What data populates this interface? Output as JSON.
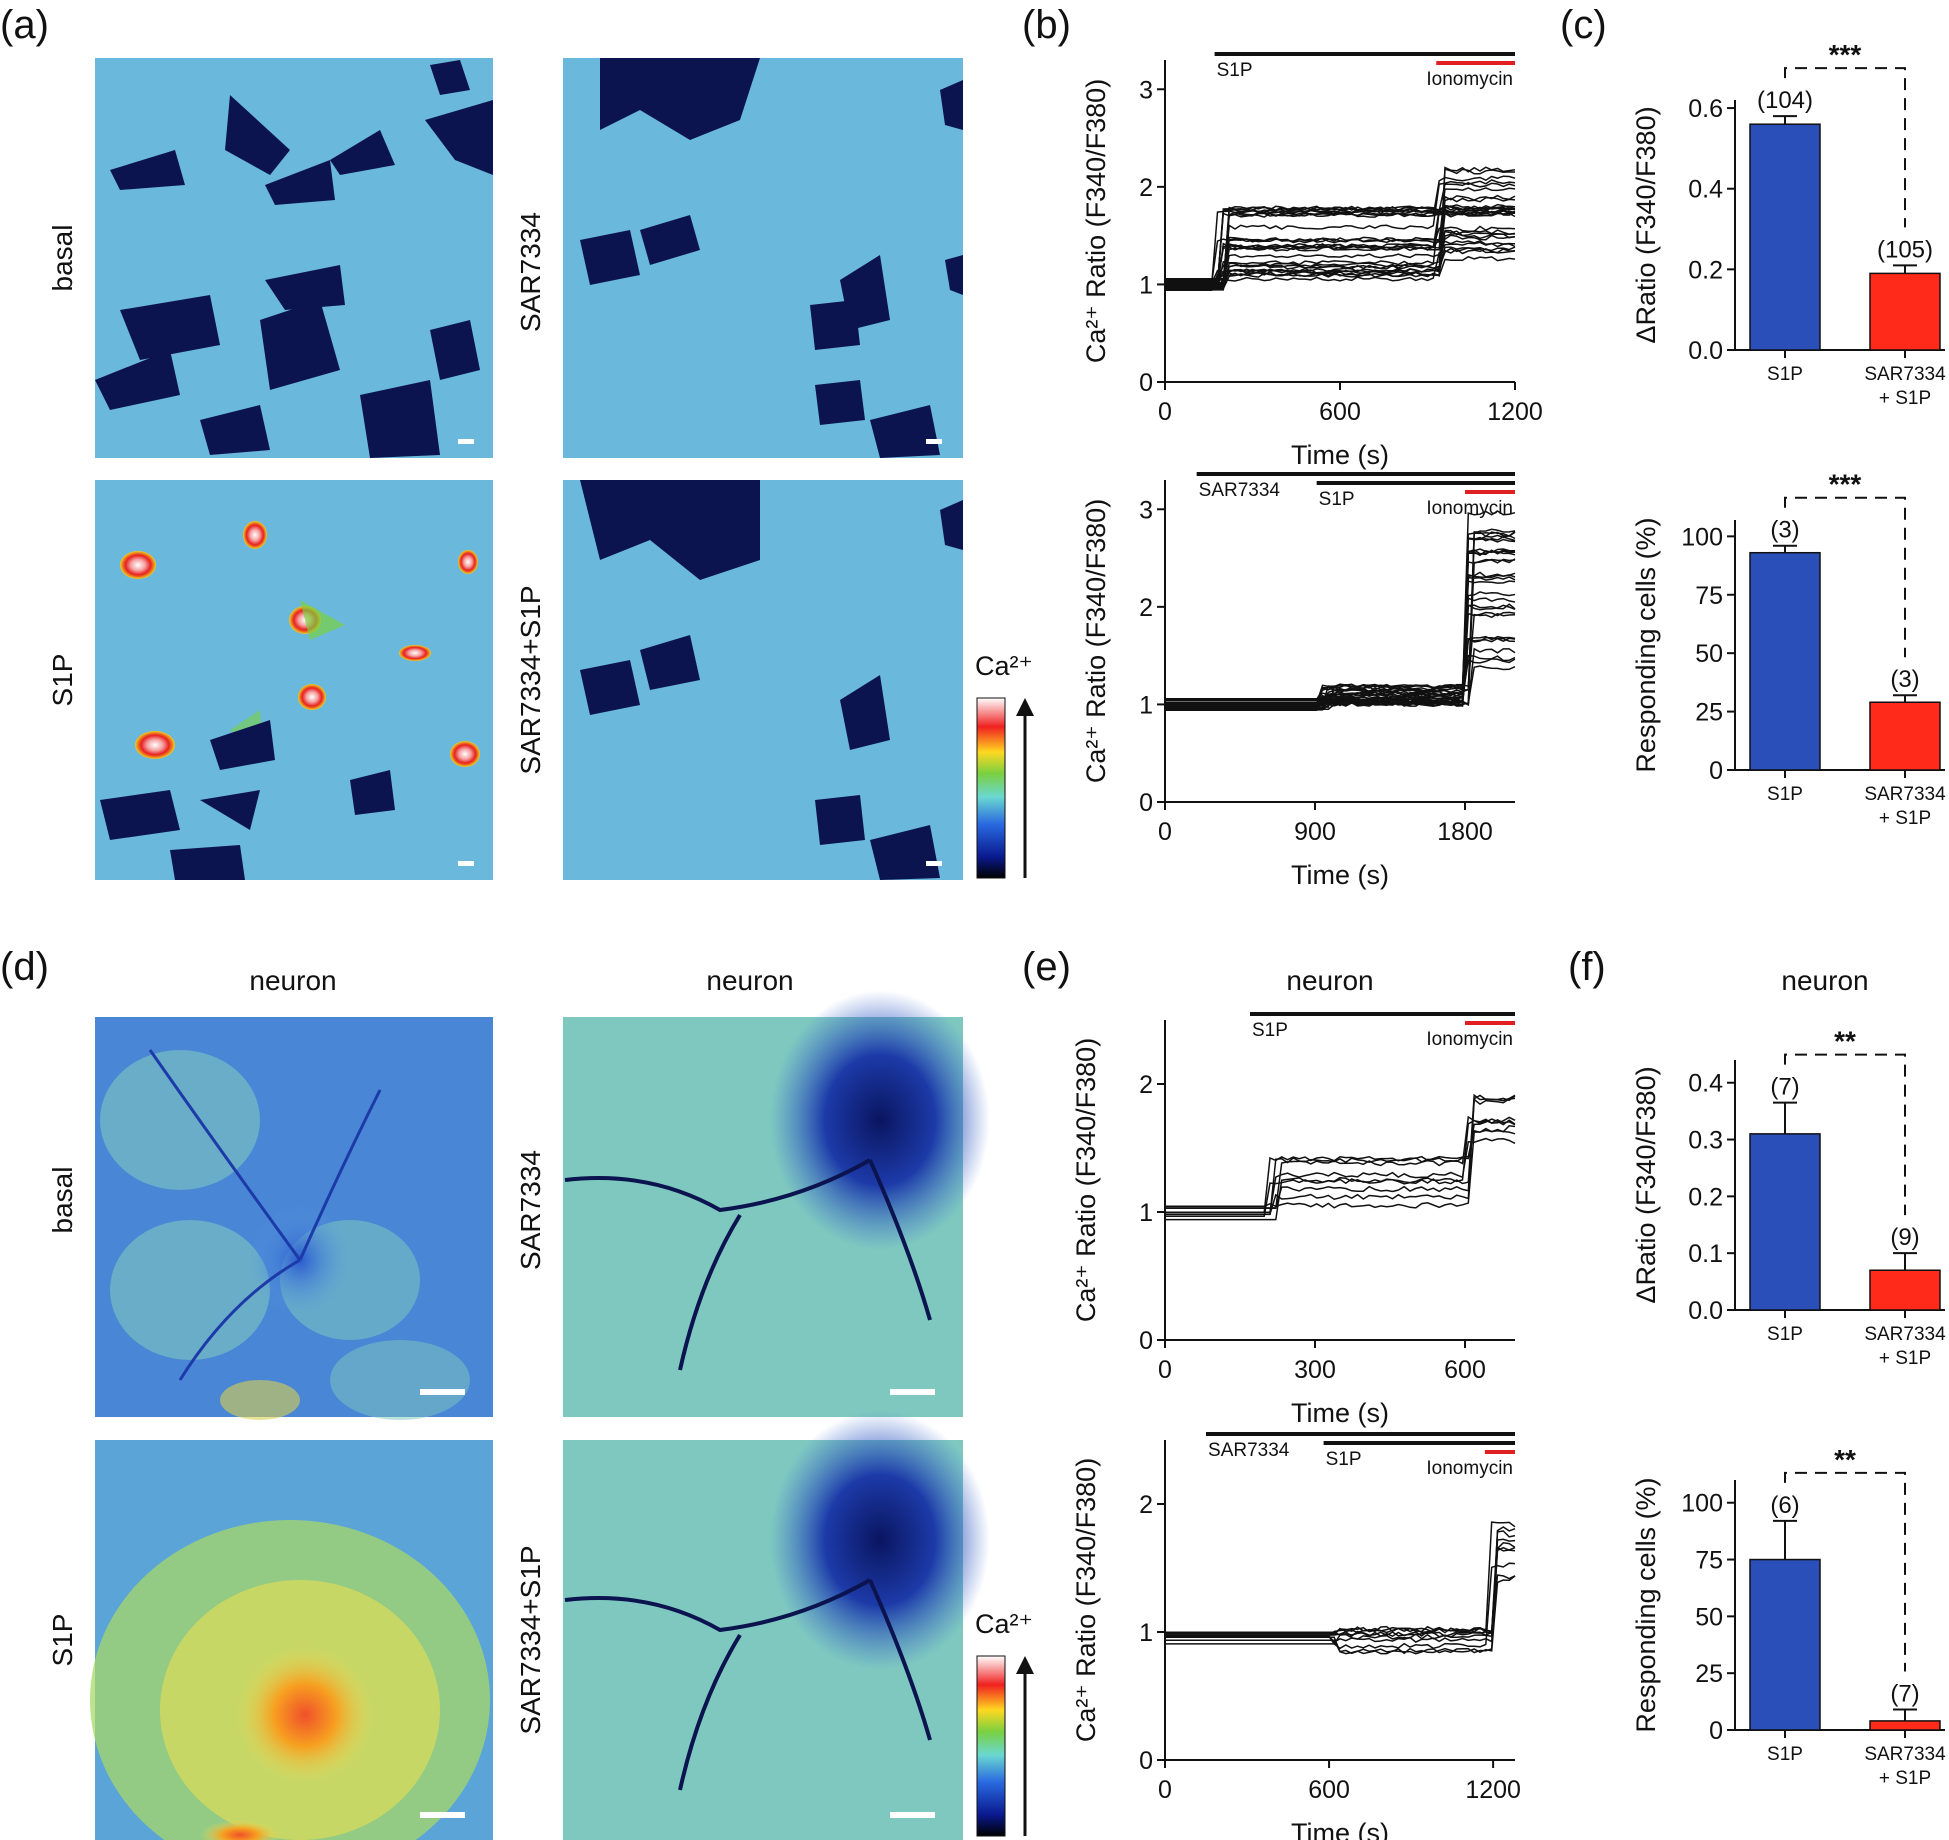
{
  "panel_labels": [
    "(a)",
    "(b)",
    "(c)",
    "(d)",
    "(e)",
    "(f)"
  ],
  "images": {
    "top_row_labels": [
      "basal",
      "SAR7334"
    ],
    "bottom_row_labels": [
      "S1P",
      "SAR7334+S1P"
    ],
    "neuron_header": "neuron",
    "colorbar_label": "Ca²⁺"
  },
  "colors": {
    "s1p": "#2a4fb8",
    "sar": "#ff2a1a",
    "ionomycin_bar": "#e02020"
  },
  "chart_data": [
    {
      "id": "b_top",
      "type": "line",
      "xlabel": "Time (s)",
      "ylabel": "Ca²⁺ Ratio (F340/F380)",
      "xlim": [
        0,
        1200
      ],
      "ylim": [
        0,
        3.3
      ],
      "xticks": [
        0,
        600,
        1200
      ],
      "yticks": [
        0,
        1,
        2,
        3
      ],
      "stimuli": [
        {
          "label": "S1P",
          "start": 170,
          "end": 1200,
          "color": "#111"
        },
        {
          "label": "Ionomycin",
          "start": 930,
          "end": 1200,
          "color": "#e02020"
        }
      ],
      "traces_description": "n≈30 single-cell traces: baseline ~1.0, rise to 1.2–1.8 after S1P at ~170 s, further rise to 1.3–2.2 after ionomycin at ~930 s",
      "trace_count": 30,
      "baseline": 1.0,
      "resp1_range": [
        1.05,
        1.8
      ],
      "resp2_range": [
        1.25,
        2.2
      ],
      "event1": 170,
      "event2": 930
    },
    {
      "id": "b_bottom",
      "type": "line",
      "xlabel": "Time (s)",
      "ylabel": "Ca²⁺ Ratio (F340/F380)",
      "xlim": [
        0,
        2100
      ],
      "ylim": [
        0,
        3.3
      ],
      "xticks": [
        0,
        900,
        1800
      ],
      "yticks": [
        0,
        1,
        2,
        3
      ],
      "stimuli": [
        {
          "label": "SAR7334",
          "start": 190,
          "end": 2100,
          "color": "#111"
        },
        {
          "label": "S1P",
          "start": 910,
          "end": 2100,
          "color": "#111"
        },
        {
          "label": "Ionomycin",
          "start": 1800,
          "end": 2100,
          "color": "#e02020"
        }
      ],
      "trace_count": 30,
      "baseline": 1.0,
      "resp1_range": [
        1.0,
        1.2
      ],
      "resp2_range": [
        1.3,
        3.0
      ],
      "event1": 910,
      "event2": 1790
    },
    {
      "id": "c_top",
      "type": "bar",
      "categories": [
        "S1P",
        "SAR7334 + S1P"
      ],
      "values": [
        0.56,
        0.19
      ],
      "errors": [
        0.02,
        0.02
      ],
      "n_labels": [
        "(104)",
        "(105)"
      ],
      "ylabel": "ΔRatio (F340/F380)",
      "ylim": [
        0,
        0.62
      ],
      "yticks": [
        0.0,
        0.2,
        0.4,
        0.6
      ],
      "significance": "***"
    },
    {
      "id": "c_bottom",
      "type": "bar",
      "categories": [
        "S1P",
        "SAR7334 + S1P"
      ],
      "values": [
        93,
        29
      ],
      "errors": [
        3,
        3
      ],
      "n_labels": [
        "(3)",
        "(3)"
      ],
      "ylabel": "Responding cells (%)",
      "ylim": [
        0,
        107
      ],
      "yticks": [
        0,
        25,
        50,
        75,
        100
      ],
      "significance": "***"
    },
    {
      "id": "e_top",
      "type": "line",
      "title": "neuron",
      "xlabel": "Time (s)",
      "ylabel": "Ca²⁺ Ratio (F340/F380)",
      "xlim": [
        0,
        700
      ],
      "ylim": [
        0,
        2.5
      ],
      "xticks": [
        0,
        300,
        600
      ],
      "yticks": [
        0,
        1,
        2
      ],
      "stimuli": [
        {
          "label": "S1P",
          "start": 170,
          "end": 700,
          "color": "#111"
        },
        {
          "label": "Ionomycin",
          "start": 600,
          "end": 700,
          "color": "#e02020"
        }
      ],
      "trace_count": 9,
      "baseline": 1.0,
      "resp1_range": [
        1.05,
        1.45
      ],
      "resp2_range": [
        1.55,
        1.95
      ],
      "event1": 200,
      "event2": 600
    },
    {
      "id": "e_bottom",
      "type": "line",
      "xlabel": "Time (s)",
      "ylabel": "Ca²⁺ Ratio (F340/F380)",
      "xlim": [
        0,
        1280
      ],
      "ylim": [
        0,
        2.5
      ],
      "xticks": [
        0,
        600,
        1200
      ],
      "yticks": [
        0,
        1,
        2
      ],
      "stimuli": [
        {
          "label": "SAR7334",
          "start": 150,
          "end": 1280,
          "color": "#111"
        },
        {
          "label": "S1P",
          "start": 580,
          "end": 1280,
          "color": "#111"
        },
        {
          "label": "Ionomycin",
          "start": 1170,
          "end": 1280,
          "color": "#e02020"
        }
      ],
      "trace_count": 10,
      "baseline": 0.95,
      "resp1_range": [
        0.85,
        1.05
      ],
      "resp2_range": [
        1.3,
        1.95
      ],
      "event1": 600,
      "event2": 1190
    },
    {
      "id": "f_top",
      "type": "bar",
      "title": "neuron",
      "categories": [
        "S1P",
        "SAR7334 + S1P"
      ],
      "values": [
        0.31,
        0.07
      ],
      "errors": [
        0.055,
        0.03
      ],
      "n_labels": [
        "(7)",
        "(9)"
      ],
      "ylabel": "ΔRatio (F340/F380)",
      "ylim": [
        0,
        0.44
      ],
      "yticks": [
        0.0,
        0.1,
        0.2,
        0.3,
        0.4
      ],
      "significance": "**"
    },
    {
      "id": "f_bottom",
      "type": "bar",
      "categories": [
        "S1P",
        "SAR7334 + S1P"
      ],
      "values": [
        75,
        4
      ],
      "errors": [
        17,
        5
      ],
      "n_labels": [
        "(6)",
        "(7)"
      ],
      "ylabel": "Responding cells (%)",
      "ylim": [
        0,
        110
      ],
      "yticks": [
        0,
        25,
        50,
        75,
        100
      ],
      "significance": "**"
    }
  ]
}
